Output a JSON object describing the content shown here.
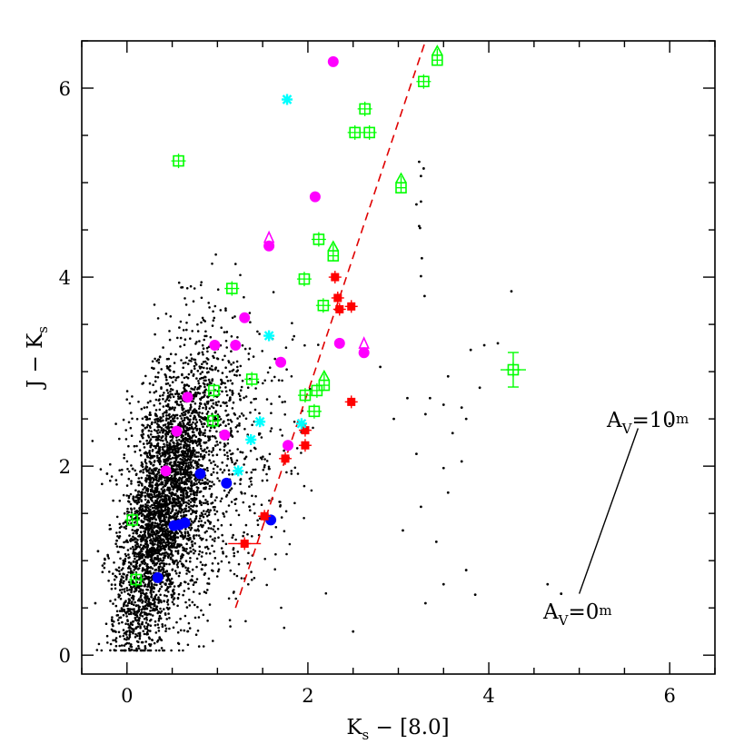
{
  "chart_data": {
    "type": "scatter",
    "title": "",
    "xlabel": "K",
    "xlabel_sub": "s",
    "xlabel_rest": " − [8.0]",
    "ylabel": "J − K",
    "ylabel_sub": "s",
    "xlim": [
      -0.5,
      6.5
    ],
    "ylim": [
      -0.2,
      6.5
    ],
    "xticks": [
      0,
      2,
      4,
      6
    ],
    "yticks": [
      0,
      2,
      4,
      6
    ],
    "grid": false,
    "background_field": {
      "name": "field stars",
      "color": "#000000",
      "count": 4200,
      "description_of_distribution": "dense cloud along reddening band",
      "outliers": [
        [
          3.23,
          5.22
        ],
        [
          3.25,
          5.07
        ],
        [
          3.28,
          5.15
        ],
        [
          3.25,
          4.8
        ],
        [
          3.23,
          4.54
        ],
        [
          3.2,
          4.77
        ],
        [
          3.24,
          4.52
        ],
        [
          3.26,
          4.2
        ],
        [
          3.29,
          3.8
        ],
        [
          3.25,
          4.01
        ],
        [
          4.25,
          3.85
        ],
        [
          3.95,
          3.28
        ],
        [
          3.8,
          3.23
        ],
        [
          3.55,
          2.95
        ],
        [
          4.1,
          3.3
        ],
        [
          3.9,
          2.83
        ],
        [
          3.5,
          2.65
        ],
        [
          3.3,
          2.55
        ],
        [
          3.2,
          2.13
        ],
        [
          3.6,
          2.35
        ],
        [
          3.75,
          2.5
        ],
        [
          3.5,
          1.98
        ],
        [
          3.55,
          1.72
        ],
        [
          3.25,
          1.57
        ],
        [
          3.05,
          1.32
        ],
        [
          3.42,
          1.2
        ],
        [
          3.5,
          0.75
        ],
        [
          3.3,
          0.55
        ],
        [
          3.85,
          0.64
        ],
        [
          3.75,
          0.9
        ],
        [
          3.1,
          2.72
        ],
        [
          2.95,
          2.5
        ],
        [
          2.8,
          3.05
        ],
        [
          3.7,
          2.62
        ],
        [
          2.5,
          0.25
        ],
        [
          0.0,
          0.25
        ],
        [
          -0.35,
          0.55
        ],
        [
          -0.25,
          0.97
        ],
        [
          -0.22,
          1.92
        ],
        [
          -0.32,
          1.1
        ],
        [
          4.8,
          0.65
        ],
        [
          4.65,
          0.75
        ],
        [
          6.0,
          2.45
        ],
        [
          3.7,
          2.05
        ],
        [
          3.35,
          2.72
        ]
      ]
    },
    "reddening_line": {
      "name": "dashed reddening locus",
      "color": "#e00000",
      "points": [
        [
          1.2,
          0.5
        ],
        [
          3.3,
          6.5
        ]
      ]
    },
    "extinction_vector": {
      "start": [
        5.0,
        0.65
      ],
      "end": [
        5.65,
        2.4
      ],
      "label_start": "A",
      "label_start_sub": "V",
      "label_start_rest": "=0",
      "label_start_sup": "m",
      "label_end": "A",
      "label_end_sub": "V",
      "label_end_rest": "=10",
      "label_end_sup": "m"
    },
    "series": [
      {
        "name": "magenta",
        "color": "#ff00ff",
        "marker": "circle",
        "points": [
          [
            2.28,
            6.28
          ],
          [
            2.08,
            4.85
          ],
          [
            1.57,
            4.33
          ],
          [
            1.3,
            3.57
          ],
          [
            1.2,
            3.28
          ],
          [
            0.97,
            3.28
          ],
          [
            0.67,
            2.73
          ],
          [
            1.7,
            3.1
          ],
          [
            2.35,
            3.3
          ],
          [
            2.62,
            3.2
          ],
          [
            1.78,
            2.22
          ],
          [
            1.08,
            2.33
          ],
          [
            0.55,
            2.37
          ],
          [
            0.43,
            1.95
          ]
        ]
      },
      {
        "name": "magenta limits",
        "color": "#ff00ff",
        "marker": "up-arrow",
        "points": [
          [
            1.57,
            4.37
          ],
          [
            2.62,
            3.25
          ]
        ]
      },
      {
        "name": "blue",
        "color": "#0000ff",
        "marker": "circle",
        "points": [
          [
            0.81,
            1.92
          ],
          [
            1.1,
            1.82
          ],
          [
            0.52,
            1.37
          ],
          [
            0.58,
            1.38
          ],
          [
            0.64,
            1.4
          ],
          [
            0.34,
            0.82
          ],
          [
            1.59,
            1.43
          ]
        ]
      },
      {
        "name": "red",
        "color": "#ff0000",
        "marker": "filled-square-err",
        "points": [
          [
            2.3,
            4.0
          ],
          [
            2.33,
            3.78
          ],
          [
            2.35,
            3.66
          ],
          [
            2.48,
            3.69
          ],
          [
            1.97,
            2.38
          ],
          [
            1.97,
            2.22
          ],
          [
            1.75,
            2.08
          ],
          [
            2.48,
            2.68
          ],
          [
            1.52,
            1.47
          ],
          [
            1.3,
            1.18
          ]
        ]
      },
      {
        "name": "cyan",
        "color": "#00ffff",
        "marker": "asterisk",
        "points": [
          [
            1.77,
            5.88
          ],
          [
            1.57,
            3.38
          ],
          [
            1.47,
            2.47
          ],
          [
            1.37,
            2.28
          ],
          [
            1.23,
            1.95
          ],
          [
            1.93,
            2.45
          ]
        ]
      },
      {
        "name": "green",
        "color": "#00ff00",
        "marker": "open-square-err",
        "points": [
          [
            0.57,
            5.23
          ],
          [
            3.28,
            6.07
          ],
          [
            2.63,
            5.78
          ],
          [
            2.52,
            5.53
          ],
          [
            2.68,
            5.53
          ],
          [
            2.12,
            4.4
          ],
          [
            1.96,
            3.98
          ],
          [
            2.17,
            3.7
          ],
          [
            1.16,
            3.88
          ],
          [
            1.38,
            2.92
          ],
          [
            0.96,
            2.8
          ],
          [
            0.95,
            2.48
          ],
          [
            1.97,
            2.75
          ],
          [
            2.1,
            2.8
          ],
          [
            2.07,
            2.58
          ],
          [
            0.06,
            1.43
          ],
          [
            0.1,
            0.8
          ],
          [
            4.27,
            3.02
          ]
        ]
      },
      {
        "name": "green limits",
        "color": "#00ff00",
        "marker": "open-square-up",
        "points": [
          [
            3.43,
            6.32
          ],
          [
            3.03,
            4.97
          ],
          [
            2.28,
            4.25
          ],
          [
            2.18,
            2.88
          ]
        ]
      }
    ]
  }
}
